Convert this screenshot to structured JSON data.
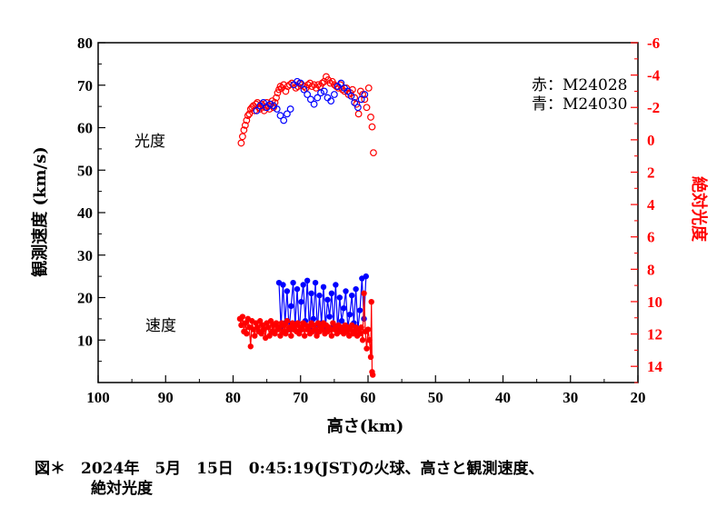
{
  "chart_data": {
    "type": "scatter",
    "title": "",
    "xlabel": "高さ(km)",
    "ylabel": "観測速度 (km/s)",
    "y2label": "絶対光度",
    "xlim": [
      100,
      20
    ],
    "ylim": [
      0,
      80
    ],
    "y2lim": [
      15,
      -6
    ],
    "xticks": [
      "100",
      "90",
      "80",
      "70",
      "60",
      "50",
      "40",
      "30",
      "20"
    ],
    "yticks": [
      "10",
      "20",
      "30",
      "40",
      "50",
      "60",
      "70",
      "80"
    ],
    "y2ticks": [
      "-6",
      "-4",
      "-2",
      "0",
      "2",
      "4",
      "6",
      "8",
      "10",
      "12",
      "14"
    ],
    "legend": [
      "赤：M24028",
      "青：M24030"
    ],
    "annotations": [
      "光度",
      "速度"
    ],
    "colors": {
      "red": "#ff0000",
      "blue": "#0000ff"
    },
    "series": [
      {
        "name": "M24028 絶対光度 (red)",
        "axis": "y2",
        "marker": "circle-open",
        "color": "#ff0000",
        "x": [
          78.8,
          78.6,
          78.4,
          78.2,
          78.0,
          77.8,
          77.6,
          77.4,
          77.2,
          77.0,
          76.8,
          76.6,
          76.4,
          76.2,
          76.0,
          75.8,
          75.6,
          75.4,
          75.2,
          75.0,
          74.8,
          74.6,
          74.4,
          74.2,
          74.0,
          73.8,
          73.6,
          73.4,
          73.2,
          73.0,
          72.8,
          72.5,
          72.2,
          71.9,
          71.6,
          71.3,
          71.0,
          70.7,
          70.4,
          70.1,
          69.8,
          69.5,
          69.2,
          68.9,
          68.6,
          68.3,
          68.0,
          67.7,
          67.4,
          67.1,
          66.8,
          66.5,
          66.2,
          65.9,
          65.6,
          65.3,
          65.0,
          64.7,
          64.4,
          64.1,
          63.8,
          63.5,
          63.2,
          62.9,
          62.6,
          62.3,
          62.0,
          61.7,
          61.4,
          61.1,
          60.8,
          60.5,
          60.2,
          59.9,
          59.6,
          59.4,
          59.2
        ],
        "y": [
          0.2,
          -0.2,
          -0.6,
          -0.9,
          -1.2,
          -1.5,
          -1.6,
          -1.9,
          -2.0,
          -2.1,
          -1.8,
          -2.2,
          -2.3,
          -2.0,
          -1.9,
          -2.2,
          -2.1,
          -1.8,
          -2.0,
          -2.3,
          -2.1,
          -1.9,
          -2.2,
          -2.4,
          -2.0,
          -2.3,
          -2.6,
          -2.9,
          -3.1,
          -3.3,
          -3.2,
          -3.4,
          -3.0,
          -3.3,
          -3.4,
          -3.5,
          -3.4,
          -3.2,
          -3.3,
          -3.5,
          -3.4,
          -3.3,
          -3.2,
          -3.4,
          -3.5,
          -3.3,
          -3.4,
          -3.2,
          -3.4,
          -3.3,
          -3.5,
          -3.6,
          -3.9,
          -3.7,
          -3.5,
          -3.6,
          -3.4,
          -3.3,
          -3.2,
          -3.4,
          -3.1,
          -3.0,
          -3.2,
          -2.8,
          -2.9,
          -3.1,
          -2.6,
          -2.2,
          -1.6,
          -3.0,
          -2.8,
          -2.5,
          -2.0,
          -3.2,
          -1.4,
          -0.8,
          0.8
        ]
      },
      {
        "name": "M24030 絶対光度 (blue)",
        "axis": "y2",
        "marker": "circle-open",
        "color": "#0000ff",
        "x": [
          76.5,
          76.0,
          75.5,
          75.0,
          74.5,
          74.0,
          73.5,
          73.0,
          72.5,
          72.0,
          71.5,
          71.0,
          70.5,
          70.0,
          69.5,
          69.0,
          68.5,
          68.0,
          67.5,
          67.0,
          66.5,
          66.0,
          65.5,
          65.0,
          64.5,
          64.0,
          63.5,
          63.0,
          62.5,
          62.0,
          61.5,
          61.0,
          60.5
        ],
        "y": [
          -1.8,
          -2.1,
          -2.3,
          -2.0,
          -2.2,
          -2.1,
          -1.9,
          -1.5,
          -1.2,
          -1.6,
          -1.9,
          -3.4,
          -3.6,
          -3.5,
          -3.1,
          -2.8,
          -2.5,
          -2.2,
          -2.6,
          -2.9,
          -3.0,
          -2.6,
          -2.4,
          -2.8,
          -3.3,
          -3.5,
          -3.2,
          -3.0,
          -2.7,
          -2.3,
          -2.0,
          -2.5,
          -2.8
        ]
      },
      {
        "name": "M24028 観測速度 (red)",
        "axis": "y",
        "marker": "dot-line",
        "color": "#ff0000",
        "x": [
          79.0,
          78.8,
          78.6,
          78.4,
          78.2,
          78.0,
          77.8,
          77.6,
          77.4,
          77.2,
          77.0,
          76.8,
          76.6,
          76.4,
          76.2,
          76.0,
          75.8,
          75.6,
          75.4,
          75.2,
          75.0,
          74.8,
          74.6,
          74.4,
          74.2,
          74.0,
          73.8,
          73.6,
          73.4,
          73.2,
          73.0,
          72.8,
          72.6,
          72.4,
          72.2,
          72.0,
          71.8,
          71.6,
          71.4,
          71.2,
          71.0,
          70.8,
          70.6,
          70.4,
          70.2,
          70.0,
          69.8,
          69.6,
          69.4,
          69.2,
          69.0,
          68.8,
          68.6,
          68.4,
          68.2,
          68.0,
          67.8,
          67.6,
          67.4,
          67.2,
          67.0,
          66.8,
          66.6,
          66.4,
          66.2,
          66.0,
          65.8,
          65.6,
          65.4,
          65.2,
          65.0,
          64.8,
          64.6,
          64.4,
          64.2,
          64.0,
          63.8,
          63.6,
          63.4,
          63.2,
          63.0,
          62.8,
          62.6,
          62.4,
          62.2,
          62.0,
          61.8,
          61.6,
          61.4,
          61.2,
          61.0,
          60.8,
          60.6,
          60.4,
          60.2,
          60.0,
          59.8,
          59.6,
          59.5,
          59.4,
          59.3
        ],
        "y": [
          15.0,
          13.5,
          15.5,
          12.0,
          14.0,
          11.5,
          15.0,
          13.0,
          8.5,
          14.5,
          12.5,
          11.0,
          14.0,
          13.0,
          12.0,
          14.5,
          11.5,
          13.5,
          12.5,
          10.5,
          14.0,
          13.0,
          11.0,
          14.5,
          12.0,
          13.5,
          11.5,
          14.0,
          12.5,
          13.0,
          11.0,
          14.0,
          12.0,
          13.5,
          11.5,
          14.5,
          12.5,
          13.0,
          11.0,
          14.0,
          12.5,
          13.5,
          12.0,
          14.0,
          11.5,
          13.0,
          12.5,
          14.0,
          11.0,
          13.5,
          12.5,
          13.0,
          11.5,
          14.0,
          12.0,
          13.5,
          12.5,
          11.0,
          14.0,
          12.0,
          13.0,
          12.5,
          14.0,
          11.5,
          13.5,
          12.0,
          13.0,
          12.5,
          11.0,
          14.0,
          12.5,
          13.0,
          11.5,
          13.5,
          12.0,
          13.0,
          12.5,
          11.5,
          13.5,
          12.0,
          13.0,
          11.0,
          12.5,
          13.5,
          11.5,
          12.0,
          13.0,
          11.0,
          12.5,
          11.5,
          13.0,
          10.0,
          21.0,
          12.0,
          8.0,
          12.5,
          10.0,
          6.0,
          19.0,
          2.5,
          1.8
        ]
      },
      {
        "name": "M24030 観測速度 (blue)",
        "axis": "y",
        "marker": "dot-line",
        "color": "#0000ff",
        "x": [
          73.2,
          72.9,
          72.6,
          72.3,
          72.0,
          71.7,
          71.4,
          71.1,
          70.8,
          70.5,
          70.2,
          69.9,
          69.6,
          69.3,
          69.0,
          68.7,
          68.4,
          68.1,
          67.8,
          67.5,
          67.2,
          66.9,
          66.6,
          66.3,
          66.0,
          65.7,
          65.4,
          65.1,
          64.8,
          64.5,
          64.2,
          63.9,
          63.6,
          63.3,
          63.0,
          62.7,
          62.4,
          62.1,
          61.8,
          61.5,
          61.2,
          60.9,
          60.6,
          60.3
        ],
        "y": [
          23.5,
          13.0,
          23.0,
          14.0,
          21.5,
          12.5,
          18.0,
          23.5,
          13.5,
          22.0,
          12.0,
          19.0,
          23.0,
          14.5,
          24.0,
          12.5,
          21.0,
          15.0,
          23.5,
          12.0,
          20.5,
          14.0,
          22.5,
          13.0,
          19.5,
          15.5,
          21.0,
          13.5,
          23.0,
          12.5,
          20.0,
          14.5,
          17.5,
          21.5,
          13.0,
          16.0,
          20.5,
          14.0,
          22.0,
          12.5,
          17.0,
          24.5,
          15.0,
          25.0
        ]
      }
    ]
  },
  "caption": {
    "line1": "図＊　2024年　5月　15日　0:45:19(JST)の火球、高さと観測速度、",
    "line2": "絶対光度"
  }
}
